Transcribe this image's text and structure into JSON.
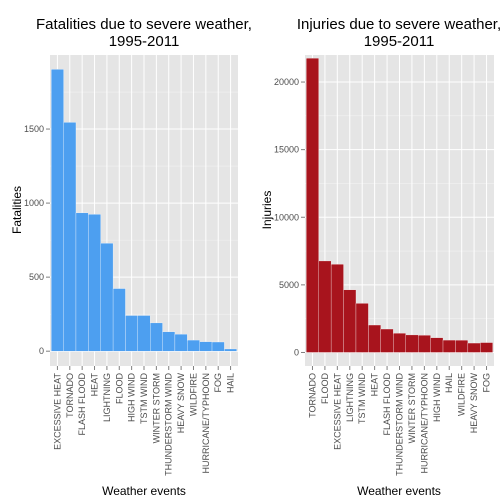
{
  "colors": {
    "panel_bg": "#e5e5e5",
    "grid_major": "#ffffff",
    "grid_minor": "#f2f2f2",
    "fatalities_bar": "#4d9ff0",
    "injuries_bar": "#a8141d",
    "tick": "#7f7f7f"
  },
  "chart_data": [
    {
      "type": "bar",
      "title": [
        "Fatalities due to severe weather,",
        "1995-2011"
      ],
      "xlabel": "Weather events",
      "ylabel": "Fatalities",
      "ylim": [
        -100,
        2000
      ],
      "yticks": [
        0,
        500,
        1000,
        1500
      ],
      "grid": true,
      "categories": [
        "EXCESSIVE HEAT",
        "TORNADO",
        "FLASH FLOOD",
        "HEAT",
        "LIGHTNING",
        "FLOOD",
        "HIGH WIND",
        "TSTM WIND",
        "WINTER STORM",
        "THUNDERSTORM WIND",
        "HEAVY SNOW",
        "WILDFIRE",
        "HURRICANE/TYPHOON",
        "FOG",
        "HAIL"
      ],
      "values": [
        1903,
        1545,
        934,
        924,
        729,
        423,
        241,
        241,
        191,
        131,
        115,
        75,
        64,
        62,
        15
      ]
    },
    {
      "type": "bar",
      "title": [
        "Injuries due to severe weather,",
        "1995-2011"
      ],
      "xlabel": "Weather events",
      "ylabel": "Injuries",
      "ylim": [
        -1000,
        22000
      ],
      "yticks": [
        0,
        5000,
        10000,
        15000,
        20000
      ],
      "grid": true,
      "categories": [
        "TORNADO",
        "FLOOD",
        "EXCESSIVE HEAT",
        "LIGHTNING",
        "TSTM WIND",
        "HEAT",
        "FLASH FLOOD",
        "THUNDERSTORM WIND",
        "WINTER STORM",
        "HURRICANE/TYPHOON",
        "HIGH WIND",
        "HAIL",
        "WILDFIRE",
        "HEAVY SNOW",
        "FOG"
      ],
      "values": [
        21765,
        6769,
        6525,
        4631,
        3631,
        2030,
        1734,
        1426,
        1298,
        1275,
        1093,
        916,
        911,
        697,
        734
      ]
    }
  ]
}
